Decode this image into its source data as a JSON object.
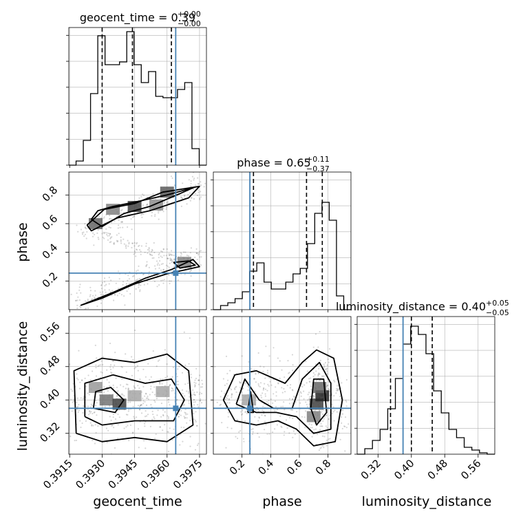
{
  "chart_data": {
    "type": "corner",
    "parameters": [
      {
        "name": "geocent_time",
        "axis_label": "geocent_time",
        "title": "geocent_time = 0.39",
        "title_sup": "+0.00",
        "title_sub": "−0.00",
        "range": [
          0.39146,
          0.39782
        ],
        "ticks": [
          0.3915,
          0.393,
          0.3945,
          0.396,
          0.3975
        ],
        "tick_labels": [
          "0.3915",
          "0.3930",
          "0.3945",
          "0.3960",
          "0.3975"
        ],
        "injection": 0.3964,
        "quantiles": [
          0.393,
          0.3944,
          0.3962
        ],
        "hist_y": [
          0.0,
          0.03,
          0.18,
          0.52,
          0.94,
          0.73,
          0.73,
          0.75,
          0.97,
          0.73,
          0.6,
          0.68,
          0.5,
          0.49,
          0.49,
          0.55,
          0.6,
          0.12,
          0.0
        ]
      },
      {
        "name": "phase",
        "axis_label": "phase",
        "title": "phase = 0.65",
        "title_sup": "+0.11",
        "title_sub": "−0.37",
        "range": [
          0.0,
          0.96
        ],
        "ticks": [
          0.2,
          0.4,
          0.6,
          0.8
        ],
        "tick_labels": [
          "0.2",
          "0.4",
          "0.6",
          "0.8"
        ],
        "injection": 0.255,
        "quantiles": [
          0.28,
          0.65,
          0.76
        ],
        "hist_y": [
          0.0,
          0.03,
          0.05,
          0.08,
          0.13,
          0.28,
          0.34,
          0.2,
          0.15,
          0.15,
          0.2,
          0.26,
          0.3,
          0.48,
          0.7,
          0.78,
          0.65,
          0.1,
          0.0
        ]
      },
      {
        "name": "luminosity_distance",
        "axis_label": "luminosity_distance",
        "title": "luminosity_distance = 0.40",
        "title_sup": "+0.05",
        "title_sub": "−0.05",
        "range": [
          0.27,
          0.6
        ],
        "ticks": [
          0.32,
          0.4,
          0.48,
          0.56
        ],
        "tick_labels": [
          "0.32",
          "0.40",
          "0.48",
          "0.56"
        ],
        "injection": 0.38,
        "quantiles": [
          0.35,
          0.4,
          0.45
        ],
        "hist_y": [
          0.0,
          0.04,
          0.1,
          0.18,
          0.33,
          0.55,
          0.8,
          0.93,
          0.87,
          0.73,
          0.46,
          0.3,
          0.18,
          0.12,
          0.05,
          0.03,
          0.01,
          0.0
        ]
      }
    ],
    "style": {
      "hist_color": "#000000",
      "truth_color": "#4682b4",
      "quantile_style": "dashed",
      "grid": true,
      "scatter_color": "#444444"
    },
    "contours": {
      "phase_vs_geocent_time": [
        [
          [
            0.3925,
            0.63
          ],
          [
            0.3928,
            0.69
          ],
          [
            0.3935,
            0.72
          ],
          [
            0.3948,
            0.76
          ],
          [
            0.396,
            0.8
          ],
          [
            0.3972,
            0.85
          ],
          [
            0.3966,
            0.81
          ],
          [
            0.3952,
            0.72
          ],
          [
            0.394,
            0.67
          ],
          [
            0.393,
            0.58
          ],
          [
            0.3925,
            0.63
          ]
        ],
        [
          [
            0.3923,
            0.59
          ],
          [
            0.3931,
            0.7
          ],
          [
            0.3945,
            0.74
          ],
          [
            0.3958,
            0.82
          ],
          [
            0.3975,
            0.86
          ],
          [
            0.397,
            0.78
          ],
          [
            0.3952,
            0.69
          ],
          [
            0.3937,
            0.64
          ],
          [
            0.3925,
            0.55
          ],
          [
            0.3923,
            0.59
          ]
        ],
        [
          [
            0.392,
            0.03
          ],
          [
            0.3935,
            0.12
          ],
          [
            0.395,
            0.22
          ],
          [
            0.3962,
            0.28
          ],
          [
            0.3972,
            0.35
          ],
          [
            0.3975,
            0.3
          ],
          [
            0.396,
            0.25
          ],
          [
            0.3945,
            0.18
          ],
          [
            0.393,
            0.08
          ],
          [
            0.392,
            0.03
          ]
        ],
        [
          [
            0.3963,
            0.33
          ],
          [
            0.397,
            0.34
          ],
          [
            0.3973,
            0.31
          ],
          [
            0.3966,
            0.29
          ],
          [
            0.3963,
            0.33
          ]
        ]
      ],
      "luminosity_distance_vs_geocent_time": [
        [
          [
            0.3918,
            0.32
          ],
          [
            0.3917,
            0.47
          ],
          [
            0.393,
            0.5
          ],
          [
            0.3945,
            0.49
          ],
          [
            0.396,
            0.51
          ],
          [
            0.397,
            0.47
          ],
          [
            0.3972,
            0.34
          ],
          [
            0.396,
            0.3
          ],
          [
            0.3945,
            0.31
          ],
          [
            0.393,
            0.3
          ],
          [
            0.3918,
            0.32
          ]
        ],
        [
          [
            0.3922,
            0.36
          ],
          [
            0.3922,
            0.44
          ],
          [
            0.3935,
            0.46
          ],
          [
            0.395,
            0.44
          ],
          [
            0.3962,
            0.45
          ],
          [
            0.3968,
            0.4
          ],
          [
            0.3963,
            0.35
          ],
          [
            0.3945,
            0.35
          ],
          [
            0.393,
            0.34
          ],
          [
            0.3922,
            0.36
          ]
        ],
        [
          [
            0.3926,
            0.38
          ],
          [
            0.3927,
            0.42
          ],
          [
            0.3934,
            0.43
          ],
          [
            0.394,
            0.4
          ],
          [
            0.3936,
            0.37
          ],
          [
            0.3926,
            0.38
          ]
        ]
      ],
      "luminosity_distance_vs_phase": [
        [
          [
            0.07,
            0.4
          ],
          [
            0.15,
            0.46
          ],
          [
            0.3,
            0.47
          ],
          [
            0.5,
            0.44
          ],
          [
            0.62,
            0.49
          ],
          [
            0.72,
            0.52
          ],
          [
            0.84,
            0.5
          ],
          [
            0.9,
            0.4
          ],
          [
            0.85,
            0.3
          ],
          [
            0.7,
            0.29
          ],
          [
            0.58,
            0.33
          ],
          [
            0.45,
            0.35
          ],
          [
            0.3,
            0.34
          ],
          [
            0.15,
            0.35
          ],
          [
            0.07,
            0.4
          ]
        ],
        [
          [
            0.16,
            0.39
          ],
          [
            0.22,
            0.45
          ],
          [
            0.32,
            0.4
          ],
          [
            0.42,
            0.38
          ],
          [
            0.55,
            0.38
          ],
          [
            0.62,
            0.45
          ],
          [
            0.74,
            0.49
          ],
          [
            0.82,
            0.44
          ],
          [
            0.82,
            0.33
          ],
          [
            0.7,
            0.32
          ],
          [
            0.58,
            0.36
          ],
          [
            0.44,
            0.37
          ],
          [
            0.3,
            0.37
          ],
          [
            0.16,
            0.39
          ]
        ],
        [
          [
            0.24,
            0.37
          ],
          [
            0.26,
            0.42
          ],
          [
            0.28,
            0.37
          ],
          [
            0.24,
            0.37
          ]
        ],
        [
          [
            0.68,
            0.38
          ],
          [
            0.7,
            0.45
          ],
          [
            0.77,
            0.45
          ],
          [
            0.79,
            0.37
          ],
          [
            0.72,
            0.34
          ],
          [
            0.68,
            0.38
          ]
        ]
      ]
    },
    "density_cells": {
      "phase_vs_geocent_time": [
        [
          0.3935,
          0.7,
          0.5
        ],
        [
          0.3945,
          0.72,
          0.75
        ],
        [
          0.3955,
          0.73,
          0.45
        ],
        [
          0.3927,
          0.6,
          0.6
        ],
        [
          0.3968,
          0.33,
          0.5
        ],
        [
          0.396,
          0.82,
          0.65
        ]
      ],
      "luminosity_distance_vs_geocent_time": [
        [
          0.3932,
          0.4,
          0.55
        ],
        [
          0.3938,
          0.39,
          0.75
        ],
        [
          0.3945,
          0.41,
          0.35
        ],
        [
          0.3958,
          0.42,
          0.35
        ],
        [
          0.3927,
          0.43,
          0.4
        ]
      ],
      "luminosity_distance_vs_phase": [
        [
          0.72,
          0.39,
          0.75
        ],
        [
          0.76,
          0.41,
          0.85
        ],
        [
          0.74,
          0.43,
          0.6
        ],
        [
          0.7,
          0.36,
          0.5
        ],
        [
          0.25,
          0.4,
          0.35
        ]
      ]
    },
    "scatter_bands": {
      "phase_vs_geocent_time": [
        {
          "from": [
            0.3917,
            0.05
          ],
          "to": [
            0.3976,
            0.36
          ],
          "spread": 0.05,
          "count": 260
        },
        {
          "from": [
            0.392,
            0.53
          ],
          "to": [
            0.3976,
            0.87
          ],
          "spread": 0.05,
          "count": 240
        },
        {
          "from": [
            0.393,
            0.52
          ],
          "to": [
            0.3965,
            0.35
          ],
          "spread": 0.025,
          "count": 110
        }
      ],
      "luminosity_distance_vs_geocent_time": [
        {
          "from": [
            0.3916,
            0.4
          ],
          "to": [
            0.3976,
            0.4
          ],
          "spread": 0.05,
          "count": 520
        }
      ],
      "luminosity_distance_vs_phase": [
        {
          "from": [
            0.05,
            0.4
          ],
          "to": [
            0.93,
            0.4
          ],
          "spread": 0.05,
          "count": 420
        },
        {
          "from": [
            0.68,
            0.4
          ],
          "to": [
            0.8,
            0.4
          ],
          "spread": 0.06,
          "count": 160
        }
      ]
    }
  }
}
